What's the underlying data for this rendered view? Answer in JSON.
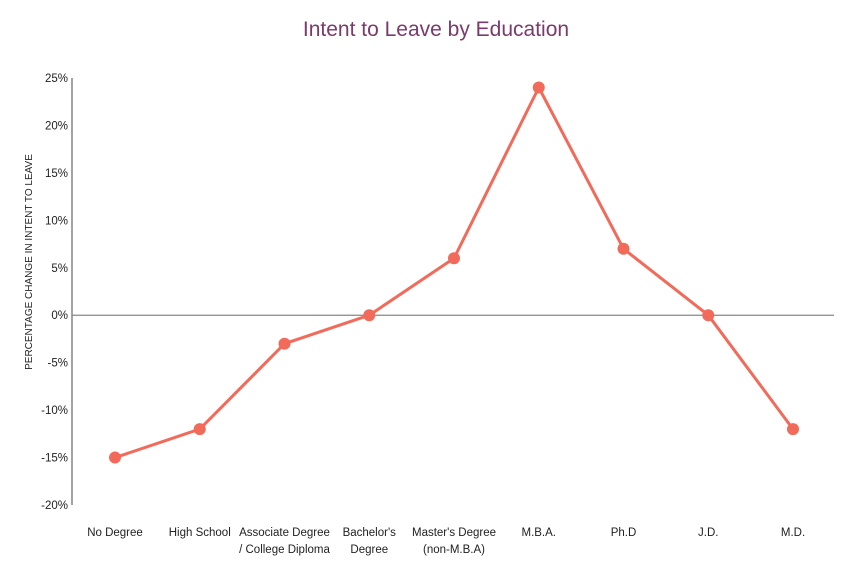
{
  "chart_data": {
    "type": "line",
    "title": "Intent to Leave by Education",
    "ylabel": "PERCENTAGE CHANGE IN INTENT TO LEAVE",
    "xlabel": "",
    "categories": [
      [
        "No Degree"
      ],
      [
        "High School"
      ],
      [
        "Associate Degree",
        "/ College Diploma"
      ],
      [
        "Bachelor's",
        "Degree"
      ],
      [
        "Master's Degree",
        "(non-M.B.A)"
      ],
      [
        "M.B.A."
      ],
      [
        "Ph.D"
      ],
      [
        "J.D."
      ],
      [
        "M.D."
      ]
    ],
    "values": [
      -15,
      -12,
      -3,
      0,
      6,
      24,
      7,
      0,
      -12
    ],
    "ylim": [
      -20,
      25
    ],
    "yticks": [
      25,
      20,
      15,
      10,
      5,
      0,
      -5,
      -10,
      -15,
      -20
    ],
    "ytick_labels": [
      "25%",
      "20%",
      "15%",
      "10%",
      "5%",
      "0%",
      "-5%",
      "-10%",
      "-15%",
      "-20%"
    ],
    "grid": false,
    "zero_line": true,
    "colors": {
      "title": "#7b3a6b",
      "line": "#f26a5a",
      "axis": "#666666",
      "zero_line": "#888888"
    }
  }
}
